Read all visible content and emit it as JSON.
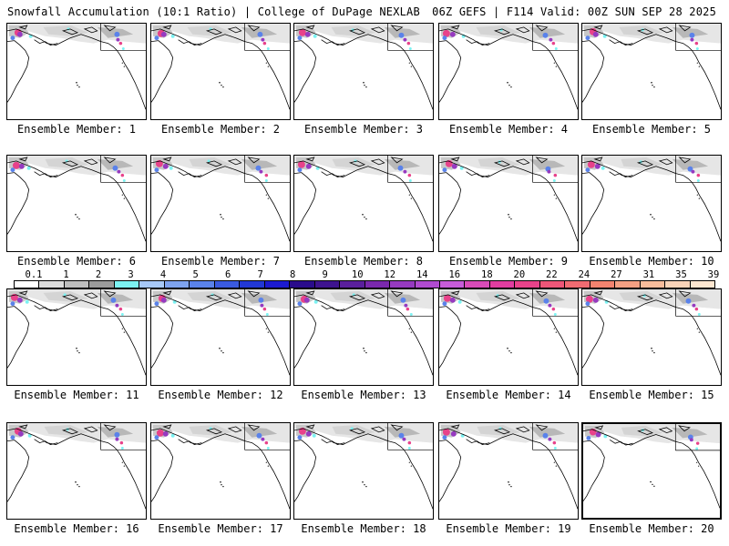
{
  "header": {
    "title": "Snowfall Accumulation (10:1 Ratio) | College of DuPage NEXLAB",
    "run_info": "06Z GEFS | F114 Valid: 00Z SUN SEP 28 2025"
  },
  "members": [
    {
      "label": "Ensemble Member: 1"
    },
    {
      "label": "Ensemble Member: 2"
    },
    {
      "label": "Ensemble Member: 3"
    },
    {
      "label": "Ensemble Member: 4"
    },
    {
      "label": "Ensemble Member: 5"
    },
    {
      "label": "Ensemble Member: 6"
    },
    {
      "label": "Ensemble Member: 7"
    },
    {
      "label": "Ensemble Member: 8"
    },
    {
      "label": "Ensemble Member: 9"
    },
    {
      "label": "Ensemble Member: 10"
    },
    {
      "label": "Ensemble Member: 11"
    },
    {
      "label": "Ensemble Member: 12"
    },
    {
      "label": "Ensemble Member: 13"
    },
    {
      "label": "Ensemble Member: 14"
    },
    {
      "label": "Ensemble Member: 15"
    },
    {
      "label": "Ensemble Member: 16"
    },
    {
      "label": "Ensemble Member: 17"
    },
    {
      "label": "Ensemble Member: 18"
    },
    {
      "label": "Ensemble Member: 19"
    },
    {
      "label": "Ensemble Member: 20",
      "selected": true
    }
  ],
  "colorbar": {
    "ticks": [
      "0.1",
      "1",
      "2",
      "3",
      "4",
      "5",
      "6",
      "7",
      "8",
      "9",
      "10",
      "12",
      "14",
      "16",
      "18",
      "20",
      "22",
      "24",
      "27",
      "31",
      "35",
      "39"
    ],
    "colors": [
      "#ffffff",
      "#dcdcdc",
      "#bebebe",
      "#9b9b9b",
      "#7cf2f2",
      "#a7c8f7",
      "#7ea3ef",
      "#5a82ea",
      "#3a5ae0",
      "#2238d6",
      "#1c1ad0",
      "#2a0c8c",
      "#3e138f",
      "#5a1f9d",
      "#7a28ad",
      "#963ac0",
      "#b04bd0",
      "#c75cd9",
      "#d84bb8",
      "#e13da0",
      "#e8428a",
      "#ee5678",
      "#f06b72",
      "#f3836f",
      "#f5a083",
      "#f8bc9b",
      "#fad3b8",
      "#fde6d0"
    ]
  }
}
